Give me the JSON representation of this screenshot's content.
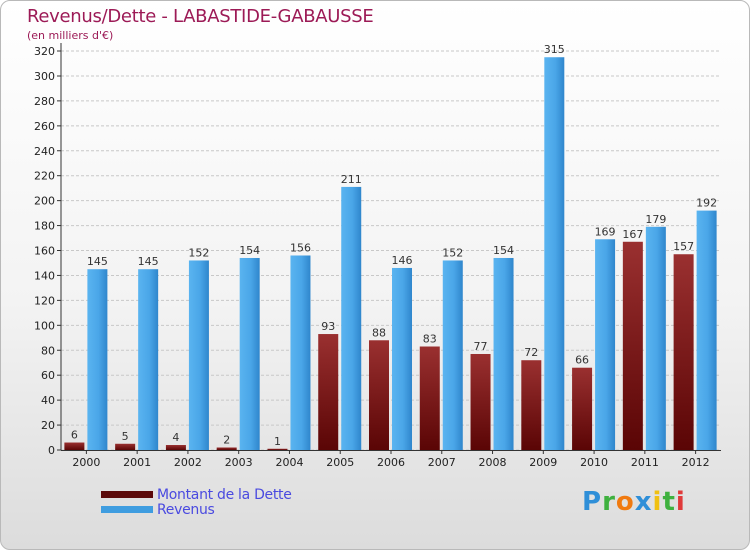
{
  "header": {
    "title": "Revenus/Dette - LABASTIDE-GABAUSSE",
    "subtitle": "(en milliers d'€)"
  },
  "colors": {
    "title": "#9c1a56",
    "dette": "#7a1a1a",
    "revenus": "#3f9de0",
    "legend_text": "#4a4ae0"
  },
  "legend": [
    {
      "label": "Montant de la Dette",
      "color": "#5c0a0a"
    },
    {
      "label": "Revenus",
      "color": "#3f9de0"
    }
  ],
  "logo": {
    "letters": [
      "P",
      "r",
      "o",
      "x",
      "i",
      "t",
      "i"
    ],
    "colors": [
      "#2f8fd8",
      "#3fb13f",
      "#f07a10",
      "#2f8fd8",
      "#f0c010",
      "#3fb13f",
      "#e03a3a"
    ]
  },
  "chart_data": {
    "type": "bar",
    "categories": [
      "2000",
      "2001",
      "2002",
      "2003",
      "2004",
      "2005",
      "2006",
      "2007",
      "2008",
      "2009",
      "2010",
      "2011",
      "2012"
    ],
    "series": [
      {
        "name": "Montant de la Dette",
        "values": [
          6,
          5,
          4,
          2,
          1,
          93,
          88,
          83,
          77,
          72,
          66,
          167,
          157
        ]
      },
      {
        "name": "Revenus",
        "values": [
          145,
          145,
          152,
          154,
          156,
          211,
          146,
          152,
          154,
          315,
          169,
          179,
          192
        ]
      }
    ],
    "yticks": [
      "0",
      "20",
      "40",
      "60",
      "80",
      "100",
      "120",
      "140",
      "160",
      "180",
      "200",
      "220",
      "240",
      "260",
      "280",
      "300",
      "320"
    ],
    "ylim": [
      0,
      320
    ],
    "grid": true
  }
}
